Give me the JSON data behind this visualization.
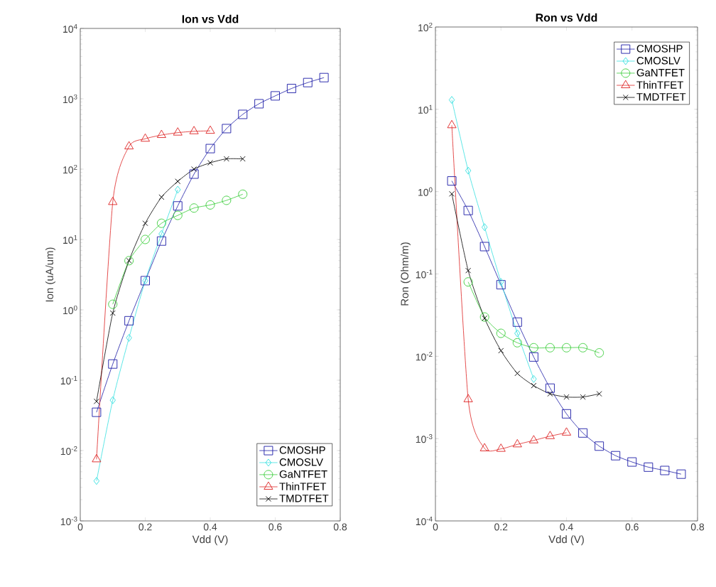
{
  "chart_data": [
    {
      "type": "line",
      "title": "Ion vs Vdd",
      "xlabel": "Vdd (V)",
      "ylabel": "Ion (uA/um)",
      "log": "y",
      "grid": false,
      "legend": "bottom right",
      "line_style": "solid",
      "xlim": [
        0,
        0.8
      ],
      "xticks": [
        0,
        0.2,
        0.4,
        0.6,
        0.8
      ],
      "ylim": [
        0.001,
        10000
      ],
      "yticks": [
        {
          "value": 0.001,
          "label": "10$^{-3}$"
        },
        {
          "value": 0.01,
          "label": "10$^{-2}$"
        },
        {
          "value": 0.1,
          "label": "10$^{-1}$"
        },
        {
          "value": 1,
          "label": "10$^{0}$"
        },
        {
          "value": 10,
          "label": "10$^{1}$"
        },
        {
          "value": 100,
          "label": "10$^{2}$"
        },
        {
          "value": 1000,
          "label": "10$^{3}$"
        },
        {
          "value": 10000,
          "label": "10$^{4}$"
        }
      ],
      "series": [
        {
          "name": "CMOSHP",
          "color": "#1a1aa6",
          "marker": "square",
          "x": [
            0.05,
            0.1,
            0.15,
            0.2,
            0.25,
            0.3,
            0.35,
            0.4,
            0.45,
            0.5,
            0.55,
            0.6,
            0.65,
            0.7,
            0.75
          ],
          "values": [
            0.035,
            0.17,
            0.7,
            2.6,
            9.5,
            30,
            85,
            196,
            377,
            600,
            850,
            1100,
            1400,
            1700,
            2000
          ]
        },
        {
          "name": "CMOSLV",
          "color": "#33e0e0",
          "marker": "diamond",
          "x": [
            0.05,
            0.1,
            0.15,
            0.2,
            0.25,
            0.3
          ],
          "values": [
            0.0037,
            0.052,
            0.4,
            2.6,
            12,
            51
          ]
        },
        {
          "name": "GaNTFET",
          "color": "#33cc33",
          "marker": "circle",
          "x": [
            0.1,
            0.15,
            0.2,
            0.25,
            0.3,
            0.35,
            0.4,
            0.45,
            0.5
          ],
          "values": [
            1.2,
            5,
            10,
            17,
            22,
            28,
            31,
            36,
            44
          ]
        },
        {
          "name": "ThinTFET",
          "color": "#dd2222",
          "marker": "triangle",
          "x": [
            0.05,
            0.1,
            0.15,
            0.2,
            0.25,
            0.3,
            0.35,
            0.4
          ],
          "values": [
            0.0075,
            34,
            210,
            270,
            305,
            330,
            345,
            350
          ]
        },
        {
          "name": "TMDTFET",
          "color": "#000000",
          "marker": "cross",
          "x": [
            0.05,
            0.1,
            0.15,
            0.2,
            0.25,
            0.3,
            0.35,
            0.4,
            0.45,
            0.5
          ],
          "values": [
            0.05,
            0.9,
            5,
            17,
            40,
            67,
            100,
            123,
            140,
            140
          ]
        }
      ]
    },
    {
      "type": "line",
      "title": "Ron vs Vdd",
      "xlabel": "Vdd (V)",
      "ylabel": "Ron (Ohm/m)",
      "log": "y",
      "grid": false,
      "legend": "top right",
      "line_style": "solid",
      "xlim": [
        0,
        0.8
      ],
      "xticks": [
        0,
        0.2,
        0.4,
        0.6,
        0.8
      ],
      "ylim": [
        0.0001,
        100
      ],
      "yticks": [
        {
          "value": 0.0001,
          "label": "10$^{-4}$"
        },
        {
          "value": 0.001,
          "label": "10$^{-3}$"
        },
        {
          "value": 0.01,
          "label": "10$^{-2}$"
        },
        {
          "value": 0.1,
          "label": "10$^{-1}$"
        },
        {
          "value": 1,
          "label": "10$^{0}$"
        },
        {
          "value": 10,
          "label": "10$^{1}$"
        },
        {
          "value": 100,
          "label": "10$^{2}$"
        }
      ],
      "series": [
        {
          "name": "CMOSHP",
          "color": "#1a1aa6",
          "marker": "square",
          "x": [
            0.05,
            0.1,
            0.15,
            0.2,
            0.25,
            0.3,
            0.35,
            0.4,
            0.45,
            0.5,
            0.55,
            0.6,
            0.65,
            0.7,
            0.75
          ],
          "values": [
            1.35,
            0.59,
            0.215,
            0.074,
            0.026,
            0.0098,
            0.0041,
            0.002,
            0.00117,
            0.00081,
            0.00062,
            0.00052,
            0.00045,
            0.00041,
            0.00037
          ]
        },
        {
          "name": "CMOSLV",
          "color": "#33e0e0",
          "marker": "diamond",
          "x": [
            0.05,
            0.1,
            0.15,
            0.2,
            0.25,
            0.3
          ],
          "values": [
            13,
            1.8,
            0.37,
            0.08,
            0.019,
            0.0053
          ]
        },
        {
          "name": "GaNTFET",
          "color": "#33cc33",
          "marker": "circle",
          "x": [
            0.1,
            0.15,
            0.2,
            0.25,
            0.3,
            0.35,
            0.4,
            0.45,
            0.5
          ],
          "values": [
            0.08,
            0.03,
            0.019,
            0.0146,
            0.0127,
            0.0127,
            0.0127,
            0.0127,
            0.011
          ]
        },
        {
          "name": "ThinTFET",
          "color": "#dd2222",
          "marker": "triangle",
          "x": [
            0.05,
            0.1,
            0.15,
            0.2,
            0.25,
            0.3,
            0.35,
            0.4
          ],
          "values": [
            6.4,
            0.003,
            0.00076,
            0.00075,
            0.00085,
            0.00095,
            0.00107,
            0.00118
          ]
        },
        {
          "name": "TMDTFET",
          "color": "#000000",
          "marker": "cross",
          "x": [
            0.05,
            0.1,
            0.15,
            0.2,
            0.25,
            0.3,
            0.35,
            0.4,
            0.45,
            0.5
          ],
          "values": [
            0.94,
            0.11,
            0.029,
            0.0117,
            0.0062,
            0.0044,
            0.0035,
            0.0032,
            0.0032,
            0.0035
          ]
        }
      ]
    }
  ]
}
